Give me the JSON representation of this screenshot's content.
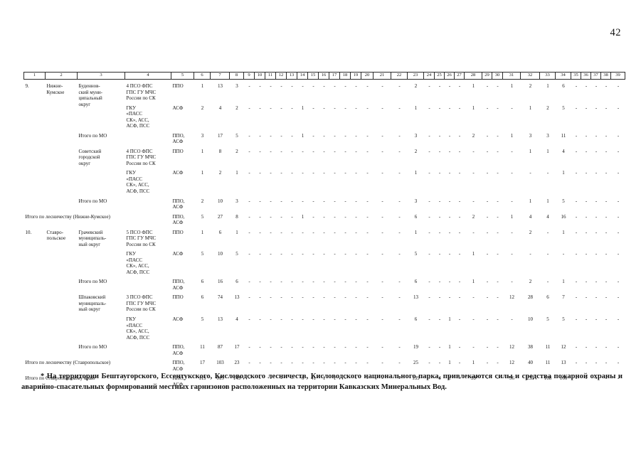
{
  "page": {
    "number": "42"
  },
  "footnote": "* На территории Бештаугорского, Ессентукского, Кисловодского лесничеств, Кисловодского национального парка, привлекаются силы и средства пожарной охраны и аварийно-спасательных формирований местных гарнизонов расположенных на территории Кавказских Минеральных Вод.",
  "table": {
    "header_cols": [
      "1",
      "2",
      "3",
      "4",
      "5",
      "6",
      "7",
      "8",
      "9",
      "10",
      "11",
      "12",
      "13",
      "14",
      "15",
      "16",
      "17",
      "18",
      "19",
      "20",
      "21",
      "22",
      "23",
      "24",
      "25",
      "26",
      "27",
      "28",
      "29",
      "30",
      "31",
      "32",
      "33",
      "34",
      "35",
      "36",
      "37",
      "38",
      "39"
    ],
    "rows": [
      {
        "cells": [
          {
            "t": "9.",
            "rs": 6,
            "name": "row-index",
            "cls": "c1"
          },
          {
            "t": "Нижне-\nКумское",
            "rs": 6,
            "name": "forestry-name"
          },
          {
            "t": "Буденнов-\nский муни-\nципальный\nокруг",
            "rs": 2,
            "name": "municipality-name"
          },
          {
            "t": "4 ПСО ФПС\nГПС ГУ МЧС\nРоссии по СК",
            "name": "organization-name"
          },
          {
            "t": "ППО",
            "name": "unit-type"
          }
        ],
        "nums": [
          "1",
          "13",
          "3",
          "-",
          "-",
          "-",
          "-",
          "-",
          "-",
          "-",
          "-",
          "-",
          "-",
          "-",
          "-",
          "-",
          "-",
          "2",
          "-",
          "-",
          "-",
          "-",
          "1",
          "-",
          "-",
          "1",
          "2",
          "1",
          "6",
          "-",
          "-",
          "-",
          "-",
          "-"
        ]
      },
      {
        "cells": [
          {
            "t": "ГКУ\n«ПАСС\nСК», АСС,\nАСФ, ПСС",
            "name": "organization-name"
          },
          {
            "t": "АСФ",
            "name": "unit-type"
          }
        ],
        "nums": [
          "2",
          "4",
          "2",
          "-",
          "-",
          "-",
          "-",
          "-",
          "1",
          "-",
          "-",
          "-",
          "-",
          "-",
          "-",
          "-",
          "-",
          "1",
          "-",
          "-",
          "-",
          "-",
          "1",
          "-",
          "-",
          "-",
          "1",
          "2",
          "5",
          "-",
          "-",
          "-",
          "-",
          "-"
        ]
      },
      {
        "cells": [
          {
            "t": "Итого по МО",
            "cs": 2,
            "name": "subtotal-label"
          },
          {
            "t": "ППО,\nАСФ",
            "name": "unit-type"
          }
        ],
        "nums": [
          "3",
          "17",
          "5",
          "-",
          "-",
          "-",
          "-",
          "-",
          "1",
          "-",
          "-",
          "-",
          "-",
          "-",
          "-",
          "-",
          "-",
          "3",
          "-",
          "-",
          "-",
          "-",
          "2",
          "-",
          "-",
          "1",
          "3",
          "3",
          "11",
          "-",
          "-",
          "-",
          "-",
          "-"
        ]
      },
      {
        "cells": [
          {
            "t": "Советский\nгородской\nокруг",
            "rs": 2,
            "name": "municipality-name"
          },
          {
            "t": "4 ПСО ФПС\nГПС ГУ МЧС\nРоссии по СК",
            "name": "organization-name"
          },
          {
            "t": "ППО",
            "name": "unit-type"
          }
        ],
        "nums": [
          "1",
          "8",
          "2",
          "-",
          "-",
          "-",
          "-",
          "-",
          "-",
          "-",
          "-",
          "-",
          "-",
          "-",
          "-",
          "-",
          "-",
          "2",
          "-",
          "-",
          "-",
          "-",
          "-",
          "-",
          "-",
          "-",
          "1",
          "1",
          "4",
          "-",
          "-",
          "-",
          "-",
          "-"
        ]
      },
      {
        "cells": [
          {
            "t": "ГКУ\n«ПАСС\nСК», АСС,\nАСФ, ПСС",
            "name": "organization-name"
          },
          {
            "t": "АСФ",
            "name": "unit-type"
          }
        ],
        "nums": [
          "1",
          "2",
          "1",
          "-",
          "-",
          "-",
          "-",
          "-",
          "-",
          "-",
          "-",
          "-",
          "-",
          "-",
          "-",
          "-",
          "-",
          "1",
          "-",
          "-",
          "-",
          "-",
          "-",
          "-",
          "-",
          "-",
          "-",
          "-",
          "1",
          "-",
          "-",
          "-",
          "-",
          "-"
        ]
      },
      {
        "cells": [
          {
            "t": "Итого по МО",
            "cs": 2,
            "name": "subtotal-label"
          },
          {
            "t": "ППО,\nАСФ",
            "name": "unit-type"
          }
        ],
        "nums": [
          "2",
          "10",
          "3",
          "-",
          "-",
          "-",
          "-",
          "-",
          "-",
          "-",
          "-",
          "-",
          "-",
          "-",
          "-",
          "-",
          "-",
          "3",
          "-",
          "-",
          "-",
          "-",
          "-",
          "-",
          "-",
          "-",
          "1",
          "1",
          "5",
          "-",
          "-",
          "-",
          "-",
          "-"
        ]
      },
      {
        "cells": [
          {
            "t": "Итого по лесничеству (Нижне-Кумское)",
            "cs": 4,
            "cls": "indent",
            "name": "forestry-total-label"
          },
          {
            "t": "ППО,\nАСФ",
            "name": "unit-type"
          }
        ],
        "nums": [
          "5",
          "27",
          "8",
          "-",
          "-",
          "-",
          "-",
          "-",
          "1",
          "-",
          "-",
          "-",
          "-",
          "-",
          "-",
          "-",
          "-",
          "6",
          "-",
          "-",
          "-",
          "-",
          "2",
          "-",
          "-",
          "1",
          "4",
          "4",
          "16",
          "-",
          "-",
          "-",
          "-",
          "-"
        ]
      },
      {
        "cells": [
          {
            "t": "10.",
            "rs": 6,
            "name": "row-index",
            "cls": "c1"
          },
          {
            "t": "Ставро-\nпольское",
            "rs": 6,
            "name": "forestry-name"
          },
          {
            "t": "Грачевский\nмуниципаль-\nный округ",
            "rs": 2,
            "name": "municipality-name"
          },
          {
            "t": "5 ПСО ФПС\nГПС ГУ МЧС\nРоссии по СК",
            "name": "organization-name"
          },
          {
            "t": "ППО",
            "name": "unit-type"
          }
        ],
        "nums": [
          "1",
          "6",
          "1",
          "-",
          "-",
          "-",
          "-",
          "-",
          "-",
          "-",
          "-",
          "-",
          "-",
          "-",
          "-",
          "-",
          "-",
          "1",
          "-",
          "-",
          "-",
          "-",
          "-",
          "-",
          "-",
          "-",
          "2",
          "-",
          "1",
          "-",
          "-",
          "-",
          "-",
          "-"
        ]
      },
      {
        "cells": [
          {
            "t": "ГКУ\n«ПАСС\nСК», АСС,\nАСФ, ПСС",
            "name": "organization-name"
          },
          {
            "t": "АСФ",
            "name": "unit-type"
          }
        ],
        "nums": [
          "5",
          "10",
          "5",
          "-",
          "-",
          "-",
          "-",
          "-",
          "-",
          "-",
          "-",
          "-",
          "-",
          "-",
          "-",
          "-",
          "-",
          "5",
          "-",
          "-",
          "-",
          "-",
          "1",
          "-",
          "-",
          "-",
          "-",
          "-",
          "-",
          "-",
          "-",
          "-",
          "-",
          "-"
        ]
      },
      {
        "cells": [
          {
            "t": "Итого по МО",
            "cs": 2,
            "name": "subtotal-label"
          },
          {
            "t": "ППО,\nАСФ",
            "name": "unit-type"
          }
        ],
        "nums": [
          "6",
          "16",
          "6",
          "-",
          "-",
          "-",
          "-",
          "-",
          "-",
          "-",
          "-",
          "-",
          "-",
          "-",
          "-",
          "-",
          "-",
          "6",
          "-",
          "-",
          "-",
          "-",
          "1",
          "-",
          "-",
          "-",
          "2",
          "-",
          "1",
          "-",
          "-",
          "-",
          "-",
          "-"
        ]
      },
      {
        "cells": [
          {
            "t": "Шпаковский\nмуниципаль-\nный округ",
            "rs": 2,
            "name": "municipality-name"
          },
          {
            "t": "3 ПСО ФПС\nГПС ГУ МЧС\nРоссии по СК",
            "name": "organization-name"
          },
          {
            "t": "ППО",
            "name": "unit-type"
          }
        ],
        "nums": [
          "6",
          "74",
          "13",
          "-",
          "-",
          "-",
          "-",
          "-",
          "-",
          "-",
          "-",
          "-",
          "-",
          "-",
          "-",
          "-",
          "-",
          "13",
          "-",
          "-",
          "-",
          "-",
          "-",
          "-",
          "-",
          "12",
          "28",
          "6",
          "7",
          "-",
          "-",
          "-",
          "-",
          "-"
        ]
      },
      {
        "cells": [
          {
            "t": "ГКУ\n«ПАСС\nСК», АСС,\nАСФ, ПСС",
            "name": "organization-name"
          },
          {
            "t": "АСФ",
            "name": "unit-type"
          }
        ],
        "nums": [
          "5",
          "13",
          "4",
          "-",
          "-",
          "-",
          "-",
          "-",
          "-",
          "-",
          "-",
          "-",
          "-",
          "-",
          "-",
          "-",
          "-",
          "6",
          "-",
          "-",
          "1",
          "-",
          "-",
          "-",
          "-",
          "-",
          "10",
          "5",
          "5",
          "-",
          "-",
          "-",
          "-",
          "-"
        ]
      },
      {
        "cells": [
          {
            "t": "Итого по МО",
            "cs": 2,
            "name": "subtotal-label"
          },
          {
            "t": "ППО,\nАСФ",
            "name": "unit-type"
          }
        ],
        "nums": [
          "11",
          "87",
          "17",
          "-",
          "-",
          "-",
          "-",
          "-",
          "-",
          "-",
          "-",
          "-",
          "-",
          "-",
          "-",
          "-",
          "-",
          "19",
          "-",
          "-",
          "1",
          "-",
          "-",
          "-",
          "-",
          "12",
          "38",
          "11",
          "12",
          "-",
          "-",
          "-",
          "-",
          "-"
        ]
      },
      {
        "cells": [
          {
            "t": "Итого по лесничеству (Ставропольское)",
            "cs": 4,
            "cls": "indent",
            "name": "forestry-total-label"
          },
          {
            "t": "ППО,\nАСФ",
            "name": "unit-type"
          }
        ],
        "nums": [
          "17",
          "103",
          "23",
          "-",
          "-",
          "-",
          "-",
          "-",
          "-",
          "-",
          "-",
          "-",
          "-",
          "-",
          "-",
          "-",
          "-",
          "25",
          "-",
          "-",
          "1",
          "-",
          "1",
          "-",
          "-",
          "12",
          "40",
          "11",
          "13",
          "-",
          "-",
          "-",
          "-",
          "-"
        ]
      },
      {
        "cells": [
          {
            "t": "Итого по Ставропольскому краю",
            "cs": 4,
            "cls": "indent",
            "name": "region-total-label"
          },
          {
            "t": "ППО,\nАСФ",
            "name": "unit-type"
          }
        ],
        "nums": [
          "119",
          "615",
          "149",
          "-",
          "-",
          "-",
          "-",
          "-",
          "6",
          "41",
          "1",
          "1",
          "-",
          "-",
          "-",
          "-",
          "-",
          "139",
          "-",
          "4",
          "1",
          "-",
          "39",
          "-",
          "-",
          "56",
          "235",
          "108",
          "166",
          "-",
          "-",
          "-",
          "-",
          "-"
        ]
      }
    ]
  }
}
